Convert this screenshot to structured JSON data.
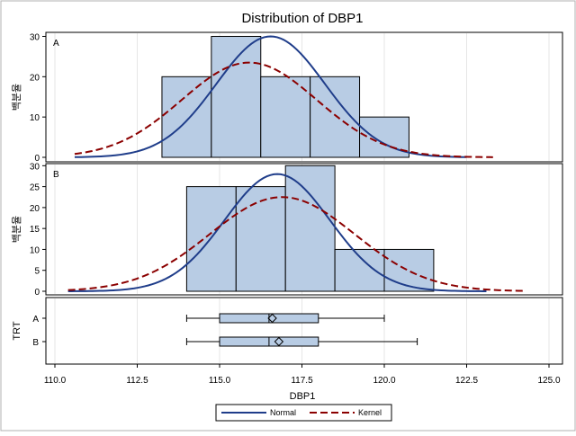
{
  "chart_data": {
    "type": "histogram-panel",
    "title": "Distribution of DBP1",
    "xlabel": "DBP1",
    "x_ticks": [
      "110.0",
      "112.5",
      "115.0",
      "117.5",
      "120.0",
      "122.5",
      "125.0"
    ],
    "xlim": [
      110.0,
      125.0
    ],
    "panels": [
      {
        "label": "A",
        "ylabel": "백분율",
        "ylim": [
          0,
          31
        ],
        "y_ticks": [
          "0",
          "10",
          "20",
          "30"
        ],
        "bins": [
          {
            "x0": 113.25,
            "x1": 114.75,
            "value": 20
          },
          {
            "x0": 114.75,
            "x1": 116.25,
            "value": 30
          },
          {
            "x0": 116.25,
            "x1": 117.75,
            "value": 20
          },
          {
            "x0": 117.75,
            "x1": 119.25,
            "value": 20
          },
          {
            "x0": 119.25,
            "x1": 120.75,
            "value": 10
          }
        ],
        "normal": {
          "mean": 116.55,
          "sd": 1.65,
          "peak": 30,
          "x_start": 110.6,
          "x_end": 122.5
        },
        "kernel": {
          "mean": 115.9,
          "sd": 2.05,
          "peak": 23.5,
          "x_start": 110.6,
          "x_end": 123.3
        }
      },
      {
        "label": "B",
        "ylabel": "백분율",
        "ylim": [
          0,
          30.5
        ],
        "y_ticks": [
          "0",
          "5",
          "10",
          "15",
          "20",
          "25",
          "30"
        ],
        "bins": [
          {
            "x0": 114.0,
            "x1": 115.5,
            "value": 25
          },
          {
            "x0": 115.5,
            "x1": 117.0,
            "value": 25
          },
          {
            "x0": 117.0,
            "x1": 118.5,
            "value": 30
          },
          {
            "x0": 118.5,
            "x1": 120.0,
            "value": 10
          },
          {
            "x0": 120.0,
            "x1": 121.5,
            "value": 10
          }
        ],
        "normal": {
          "mean": 116.75,
          "sd": 1.6,
          "peak": 28,
          "x_start": 110.4,
          "x_end": 123.1
        },
        "kernel": {
          "mean": 116.9,
          "sd": 2.2,
          "peak": 22.5,
          "x_start": 110.4,
          "x_end": 124.3
        }
      }
    ],
    "boxplot": {
      "ylabel": "TRT",
      "groups": [
        {
          "label": "A",
          "min": 114.0,
          "q1": 115.0,
          "median": 116.5,
          "mean": 116.6,
          "q3": 118.0,
          "max": 120.0
        },
        {
          "label": "B",
          "min": 114.0,
          "q1": 115.0,
          "median": 116.5,
          "mean": 116.8,
          "q3": 118.0,
          "max": 121.0
        }
      ]
    },
    "legend": {
      "placement": "bottom-center",
      "items": [
        {
          "name": "Normal",
          "color": "#1f3d8a",
          "style": "solid"
        },
        {
          "name": "Kernel",
          "color": "#8b0000",
          "style": "dashed"
        }
      ]
    },
    "colors": {
      "bar_fill": "#b8cce4",
      "bar_stroke": "#000000",
      "box_fill": "#b8cce4",
      "normal": "#1f3d8a",
      "kernel": "#8b0000",
      "grid": "#e6e6e6"
    },
    "grid": true
  }
}
